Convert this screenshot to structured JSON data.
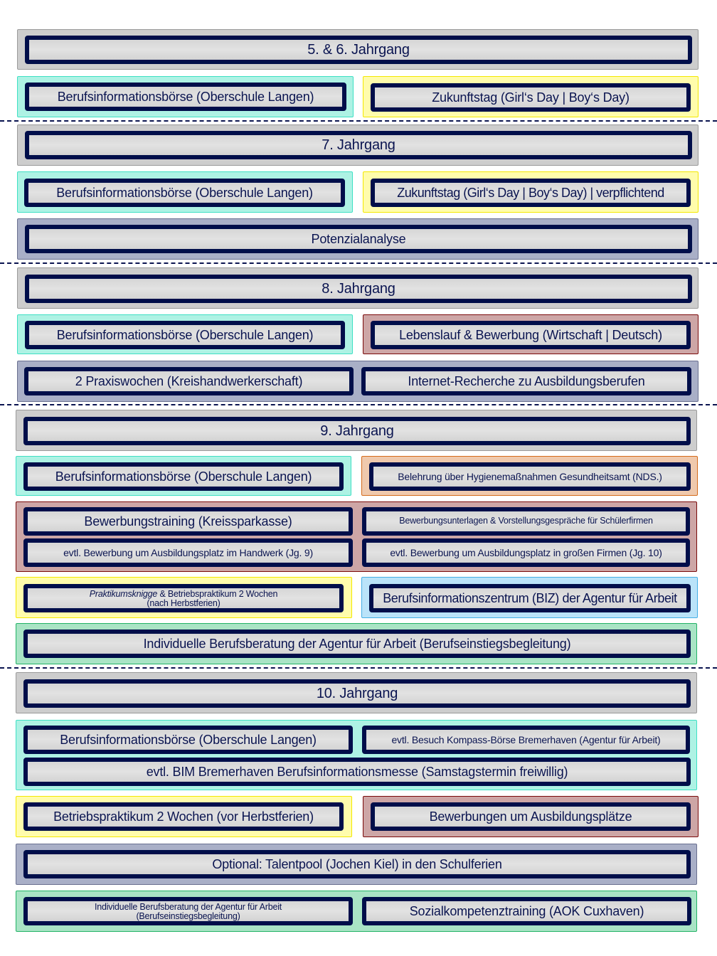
{
  "grade_5_6": {
    "heading": "5. & 6. Jahrgang",
    "items": [
      "Berufsinformationsbörse (Oberschule Langen)",
      "Zukunftstag (Girl‘s Day | Boy‘s Day)"
    ]
  },
  "grade_7": {
    "heading": "7. Jahrgang",
    "items": [
      "Berufsinformationsbörse (Oberschule Langen)",
      "Zukunftstag (Girl‘s Day | Boy‘s Day) | verpflichtend",
      "Potenzialanalyse"
    ]
  },
  "grade_8": {
    "heading": "8. Jahrgang",
    "items": [
      "Berufsinformationsbörse (Oberschule Langen)",
      "Lebenslauf & Bewerbung (Wirtschaft | Deutsch)",
      "2 Praxiswochen (Kreishandwerkerschaft)",
      "Internet-Recherche zu Ausbildungsberufen"
    ]
  },
  "grade_9": {
    "heading": "9. Jahrgang",
    "items": [
      "Berufsinformationsbörse (Oberschule Langen)",
      "Belehrung über Hygienemaßnahmen Gesundheitsamt (NDS.)",
      "Bewerbungstraining (Kreissparkasse)",
      "Bewerbungsunterlagen & Vorstellungsgespräche für Schülerfirmen",
      "evtl. Bewerbung um Ausbildungsplatz im Handwerk (Jg. 9)",
      "evtl. Bewerbung um Ausbildungsplatz in großen Firmen  (Jg. 10)",
      "Berufsinformationszentrum (BIZ) der Agentur für Arbeit",
      "Individuelle Berufsberatung der Agentur für Arbeit (Berufseinstiegsbegleitung)"
    ],
    "praktikum_italic": "Praktikumsknigge",
    "praktikum_rest": " & Betriebspraktikum 2 Wochen",
    "praktikum_line2": "(nach Herbstferien)"
  },
  "grade_10": {
    "heading": "10. Jahrgang",
    "items": [
      "Berufsinformationsbörse (Oberschule Langen)",
      "evtl. Besuch Kompass-Börse Bremerhaven (Agentur für Arbeit)",
      "evtl. BIM Bremerhaven Berufsinformationsmesse (Samstagstermin freiwillig)",
      "Betriebspraktikum 2 Wochen (vor Herbstferien)",
      "Bewerbungen um Ausbildungsplätze",
      "Optional: Talentpool (Jochen Kiel) in den Schulferien",
      "Sozialkompetenztraining (AOK Cuxhaven)"
    ],
    "beratung_line1": "Individuelle Berufsberatung der Agentur für Arbeit",
    "beratung_line2": "(Berufseinstiegsbegleitung)"
  },
  "colors": {
    "heading": "#cdcdcd",
    "bib": "#aef2e4",
    "zukunftstag": "#fffcac",
    "potenzial": "#a9afc7",
    "bewerbung": "#cda6a6",
    "hygiene": "#efc9ad",
    "biz": "#bae3f9",
    "beratung": "#a9e4c5",
    "inner_border": "#000e4a"
  }
}
